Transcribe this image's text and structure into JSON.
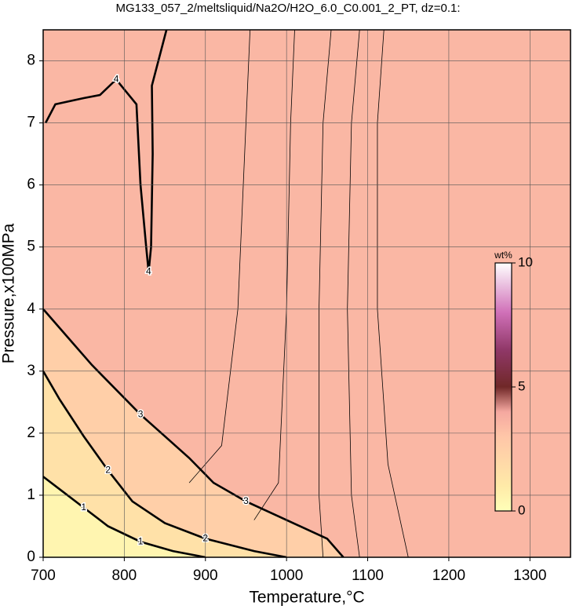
{
  "chart_data": {
    "type": "contour",
    "title": "MG133_057_2/meltsliquid/Na2O/H2O_6.0_C0.001_2_PT, dz=0.1:",
    "xlabel": "Temperature,°C",
    "ylabel": "Pressure,x100MPa",
    "xlim": [
      700,
      1350
    ],
    "ylim": [
      0,
      8.5
    ],
    "xticks": [
      700,
      800,
      900,
      1000,
      1100,
      1200,
      1300
    ],
    "yticks": [
      0,
      1,
      2,
      3,
      4,
      5,
      6,
      7,
      8
    ],
    "grid": true,
    "colorbar": {
      "label": "wt%",
      "lim": [
        0,
        10
      ],
      "ticks": [
        0,
        5,
        10
      ]
    },
    "colormap": [
      {
        "value": 0,
        "color": "#ffffb8"
      },
      {
        "value": 1,
        "color": "#ffeaa8"
      },
      {
        "value": 2,
        "color": "#ffd8a8"
      },
      {
        "value": 3,
        "color": "#ffc6a8"
      },
      {
        "value": 4,
        "color": "#f5a8a0"
      },
      {
        "value": 5,
        "color": "#702828"
      },
      {
        "value": 6.5,
        "color": "#903868"
      },
      {
        "value": 8,
        "color": "#d070b8"
      },
      {
        "value": 10,
        "color": "#ffffff"
      }
    ],
    "contours": [
      {
        "level": 4,
        "x": [
          703,
          715,
          750,
          770,
          790,
          815,
          820,
          827,
          830,
          833,
          835,
          834,
          852
        ],
        "y": [
          7.0,
          7.3,
          7.4,
          7.45,
          7.7,
          7.3,
          6.0,
          5.0,
          4.6,
          5.0,
          6.5,
          7.6,
          8.5
        ]
      },
      {
        "level": 3,
        "x": [
          700,
          730,
          760,
          790,
          820,
          850,
          880,
          910,
          950,
          1000,
          1050,
          1070
        ],
        "y": [
          4.0,
          3.55,
          3.1,
          2.7,
          2.3,
          1.95,
          1.6,
          1.2,
          0.9,
          0.6,
          0.3,
          0.0
        ]
      },
      {
        "level": 2,
        "x": [
          700,
          720,
          750,
          780,
          810,
          850,
          900,
          960,
          1000
        ],
        "y": [
          3.0,
          2.55,
          1.95,
          1.4,
          0.9,
          0.55,
          0.3,
          0.1,
          0.0
        ]
      },
      {
        "level": 1,
        "x": [
          700,
          720,
          750,
          780,
          820,
          860,
          900
        ],
        "y": [
          1.3,
          1.1,
          0.8,
          0.5,
          0.25,
          0.1,
          0.0
        ]
      },
      {
        "level": 3.6,
        "x": [
          1090,
          1080,
          1075,
          1080,
          1090
        ],
        "y": [
          0.0,
          1.0,
          4.0,
          7.0,
          8.5
        ]
      },
      {
        "level": 3.5,
        "x": [
          1150,
          1125,
          1112,
          1112,
          1120
        ],
        "y": [
          0.0,
          1.5,
          4.0,
          7.0,
          8.5
        ]
      },
      {
        "level": 3.7,
        "x": [
          1045,
          1040,
          1040,
          1045,
          1055
        ],
        "y": [
          0.0,
          1.0,
          4.0,
          7.0,
          8.5
        ]
      },
      {
        "level": 3.8,
        "x": [
          960,
          990,
          1000,
          1005,
          1010
        ],
        "y": [
          0.6,
          1.2,
          4.0,
          7.0,
          8.5
        ]
      },
      {
        "level": 3.9,
        "x": [
          880,
          920,
          940,
          950,
          955
        ],
        "y": [
          1.2,
          1.8,
          4.0,
          7.0,
          8.5
        ]
      }
    ]
  }
}
